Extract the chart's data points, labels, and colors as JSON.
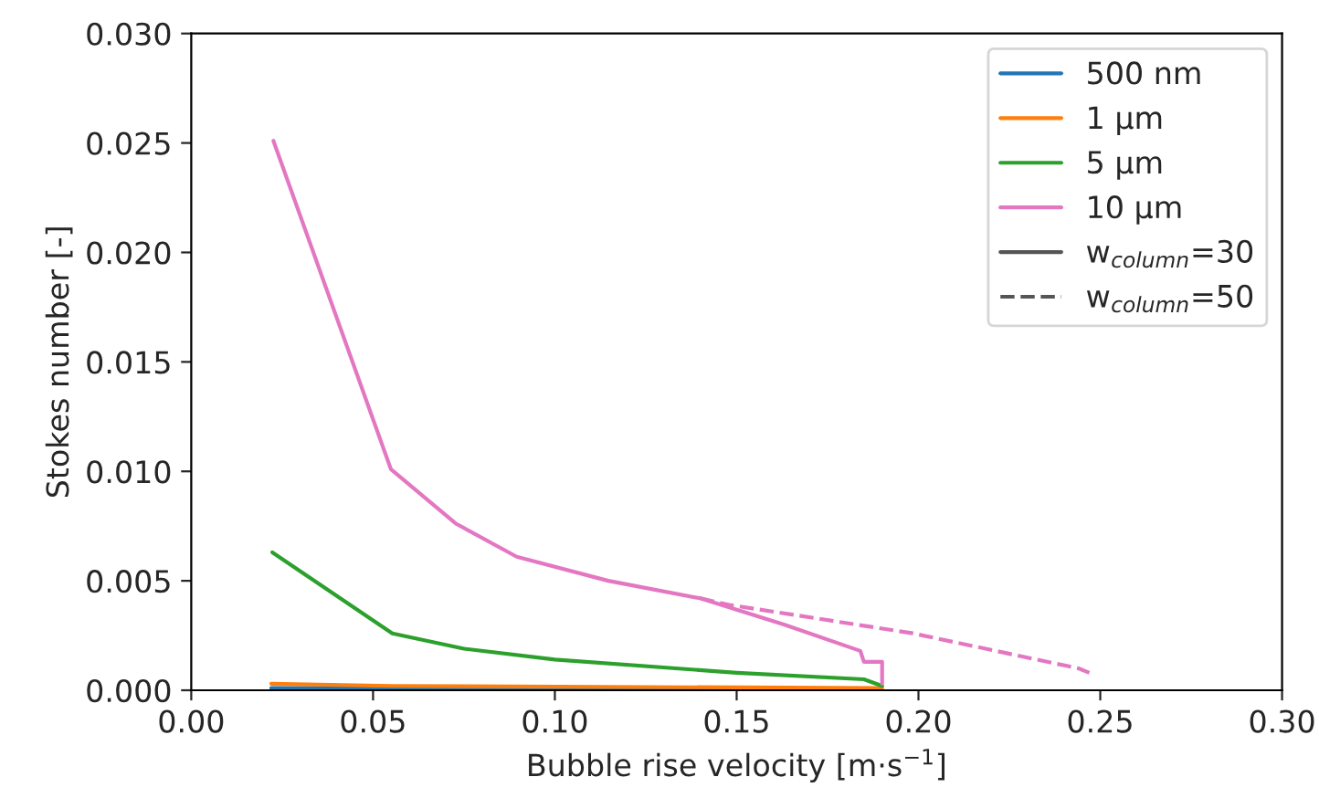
{
  "chart_data": {
    "type": "line",
    "xlabel": "Bubble rise velocity [m·s$^{−1}$]",
    "ylabel": "Stokes number [-]",
    "xlim": [
      0.0,
      0.3
    ],
    "xticks": [
      {
        "value": 0.0,
        "label": "0.00"
      },
      {
        "value": 0.05,
        "label": "0.05"
      },
      {
        "value": 0.1,
        "label": "0.10"
      },
      {
        "value": 0.15,
        "label": "0.15"
      },
      {
        "value": 0.2,
        "label": "0.20"
      },
      {
        "value": 0.25,
        "label": "0.25"
      },
      {
        "value": 0.3,
        "label": "0.30"
      }
    ],
    "ylim": [
      0.0,
      0.03
    ],
    "yticks": [
      {
        "value": 0.0,
        "label": "0.000"
      },
      {
        "value": 0.005,
        "label": "0.005"
      },
      {
        "value": 0.01,
        "label": "0.010"
      },
      {
        "value": 0.015,
        "label": "0.015"
      },
      {
        "value": 0.02,
        "label": "0.020"
      },
      {
        "value": 0.025,
        "label": "0.025"
      },
      {
        "value": 0.03,
        "label": "0.030"
      }
    ],
    "grid": false,
    "legend": "top right",
    "line_style": "solid",
    "series": [
      {
        "name": "500 nm",
        "color": "#1f77b4",
        "x": [
          0.022,
          0.055,
          0.19
        ],
        "values": [
          0.0001,
          0.0001,
          0.0
        ]
      },
      {
        "name": "1 µm",
        "color": "#ff7f0e",
        "x": [
          0.022,
          0.055,
          0.19
        ],
        "values": [
          0.0003,
          0.0002,
          0.0001
        ]
      },
      {
        "name": "5 µm",
        "color": "#2ca02c",
        "x": [
          0.0223,
          0.0553,
          0.075,
          0.1,
          0.15,
          0.185,
          0.19
        ],
        "values": [
          0.0063,
          0.0026,
          0.0019,
          0.0014,
          0.0008,
          0.0005,
          0.0002
        ]
      },
      {
        "name": "10 µm",
        "color": "#e377c2",
        "x": [
          0.0226,
          0.0549,
          0.0729,
          0.0895,
          0.1147,
          0.14,
          0.163,
          0.184,
          0.185,
          0.19,
          0.19
        ],
        "values": [
          0.0251,
          0.0101,
          0.0076,
          0.0061,
          0.005,
          0.0042,
          0.003,
          0.0018,
          0.0013,
          0.0013,
          0.0003
        ]
      },
      {
        "color": "#e377c2",
        "line_style": "dashed",
        "x": [
          0.14,
          0.148,
          0.1985,
          0.244,
          0.247
        ],
        "values": [
          0.0042,
          0.0039,
          0.0026,
          0.001,
          0.0008
        ]
      },
      {
        "name": "w$_{column}$=30",
        "color": "#555555",
        "line_style": "solid"
      },
      {
        "name": "w$_{column}$=50",
        "color": "#555555",
        "line_style": "dashed"
      }
    ]
  }
}
